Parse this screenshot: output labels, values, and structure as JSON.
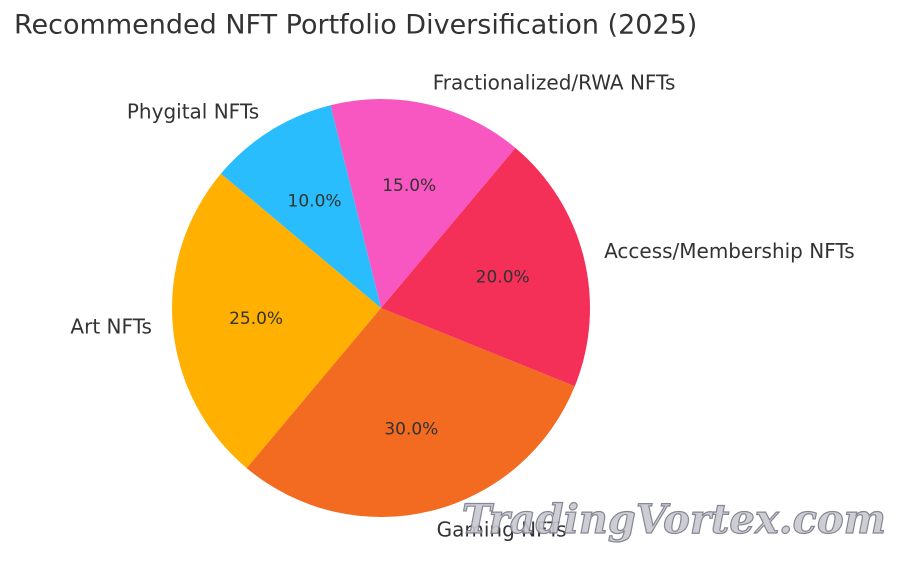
{
  "chart_data": {
    "type": "pie",
    "title": "Recommended NFT Portfolio Diversification (2025)",
    "categories": [
      "Art NFTs",
      "Gaming NFTs",
      "Access/Membership NFTs",
      "Fractionalized/RWA NFTs",
      "Phygital NFTs"
    ],
    "values": [
      25,
      30,
      20,
      15,
      10
    ],
    "value_labels": [
      "25.0%",
      "30.0%",
      "20.0%",
      "15.0%",
      "10.0%"
    ],
    "colors": [
      "#ffb000",
      "#f26b21",
      "#f43058",
      "#f857c1",
      "#29bdfd"
    ]
  },
  "watermark": "TradingVortex.com"
}
